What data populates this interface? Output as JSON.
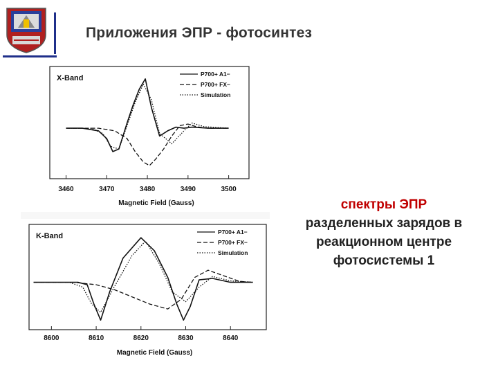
{
  "slide": {
    "title": "Приложения ЭПР - фотосинтез",
    "caption": [
      "спектры ЭПР",
      "разделенных зарядов в",
      "реакционном центре",
      "фотосистемы 1"
    ],
    "accent_color": "#c00000",
    "title_color": "#333333"
  },
  "chart_data": [
    {
      "type": "line",
      "band_label": "X-Band",
      "xlabel": "Magnetic Field (Gauss)",
      "xlim": [
        3456,
        3505
      ],
      "ticks": [
        "3460",
        "3470",
        "3480",
        "3490",
        "3500"
      ],
      "legend": {
        "placement": "top-right",
        "entries": [
          "P700+ A1−",
          "P700+ FX−",
          "Simulation"
        ]
      },
      "series": [
        {
          "style": "solid",
          "x": [
            3460,
            3464,
            3468,
            3470,
            3471.5,
            3473,
            3475,
            3476.5,
            3478,
            3479.5,
            3481,
            3483,
            3485,
            3487,
            3489,
            3491,
            3495,
            3500
          ],
          "y": [
            0,
            0,
            -0.05,
            -0.2,
            -0.45,
            -0.4,
            0.1,
            0.45,
            0.75,
            0.95,
            0.4,
            -0.15,
            -0.05,
            0.02,
            0.0,
            0.02,
            0.0,
            0.0
          ]
        },
        {
          "style": "dashed",
          "x": [
            3460,
            3468,
            3472,
            3475,
            3477,
            3479,
            3480.5,
            3482,
            3484,
            3486,
            3488,
            3490,
            3492,
            3495,
            3500
          ],
          "y": [
            0,
            0,
            -0.05,
            -0.2,
            -0.45,
            -0.65,
            -0.72,
            -0.6,
            -0.4,
            -0.15,
            0.05,
            0.08,
            0.03,
            0.0,
            0.0
          ]
        },
        {
          "style": "dotted",
          "x": [
            3460,
            3466,
            3469,
            3471,
            3473,
            3475,
            3477,
            3479,
            3481,
            3483,
            3486,
            3489,
            3491,
            3494,
            3500
          ],
          "y": [
            0,
            0,
            -0.1,
            -0.35,
            -0.4,
            0.05,
            0.5,
            0.85,
            0.55,
            -0.1,
            -0.3,
            -0.05,
            0.1,
            0.03,
            0.0
          ]
        }
      ]
    },
    {
      "type": "line",
      "band_label": "K-Band",
      "xlabel": "Magnetic Field (Gauss)",
      "xlim": [
        8595,
        8648
      ],
      "ticks": [
        "8600",
        "8610",
        "8620",
        "8630",
        "8640"
      ],
      "legend": {
        "placement": "top-right",
        "entries": [
          "P700+ A1−",
          "P700+ FX−",
          "Simulation"
        ]
      },
      "series": [
        {
          "style": "solid",
          "x": [
            8596,
            8602,
            8606,
            8608,
            8609.5,
            8611,
            8613,
            8616,
            8620,
            8623,
            8626,
            8628,
            8629.5,
            8631,
            8633,
            8636,
            8640,
            8645
          ],
          "y": [
            0,
            0,
            0,
            -0.05,
            -0.45,
            -0.78,
            -0.2,
            0.5,
            0.92,
            0.65,
            0.1,
            -0.45,
            -0.78,
            -0.5,
            0.05,
            0.08,
            0.0,
            0.0
          ]
        },
        {
          "style": "dashed",
          "x": [
            8596,
            8605,
            8610,
            8614,
            8618,
            8622,
            8626,
            8629,
            8632,
            8635,
            8638,
            8642,
            8645
          ],
          "y": [
            0,
            0,
            -0.05,
            -0.15,
            -0.3,
            -0.45,
            -0.55,
            -0.35,
            0.1,
            0.25,
            0.15,
            0.02,
            0.0
          ]
        },
        {
          "style": "dotted",
          "x": [
            8596,
            8604,
            8607,
            8609,
            8611,
            8614,
            8618,
            8621,
            8624,
            8627,
            8630,
            8633,
            8636,
            8640,
            8645
          ],
          "y": [
            0,
            0,
            -0.1,
            -0.45,
            -0.62,
            -0.1,
            0.55,
            0.85,
            0.4,
            -0.2,
            -0.4,
            -0.1,
            0.12,
            0.03,
            0.0
          ]
        }
      ]
    }
  ]
}
